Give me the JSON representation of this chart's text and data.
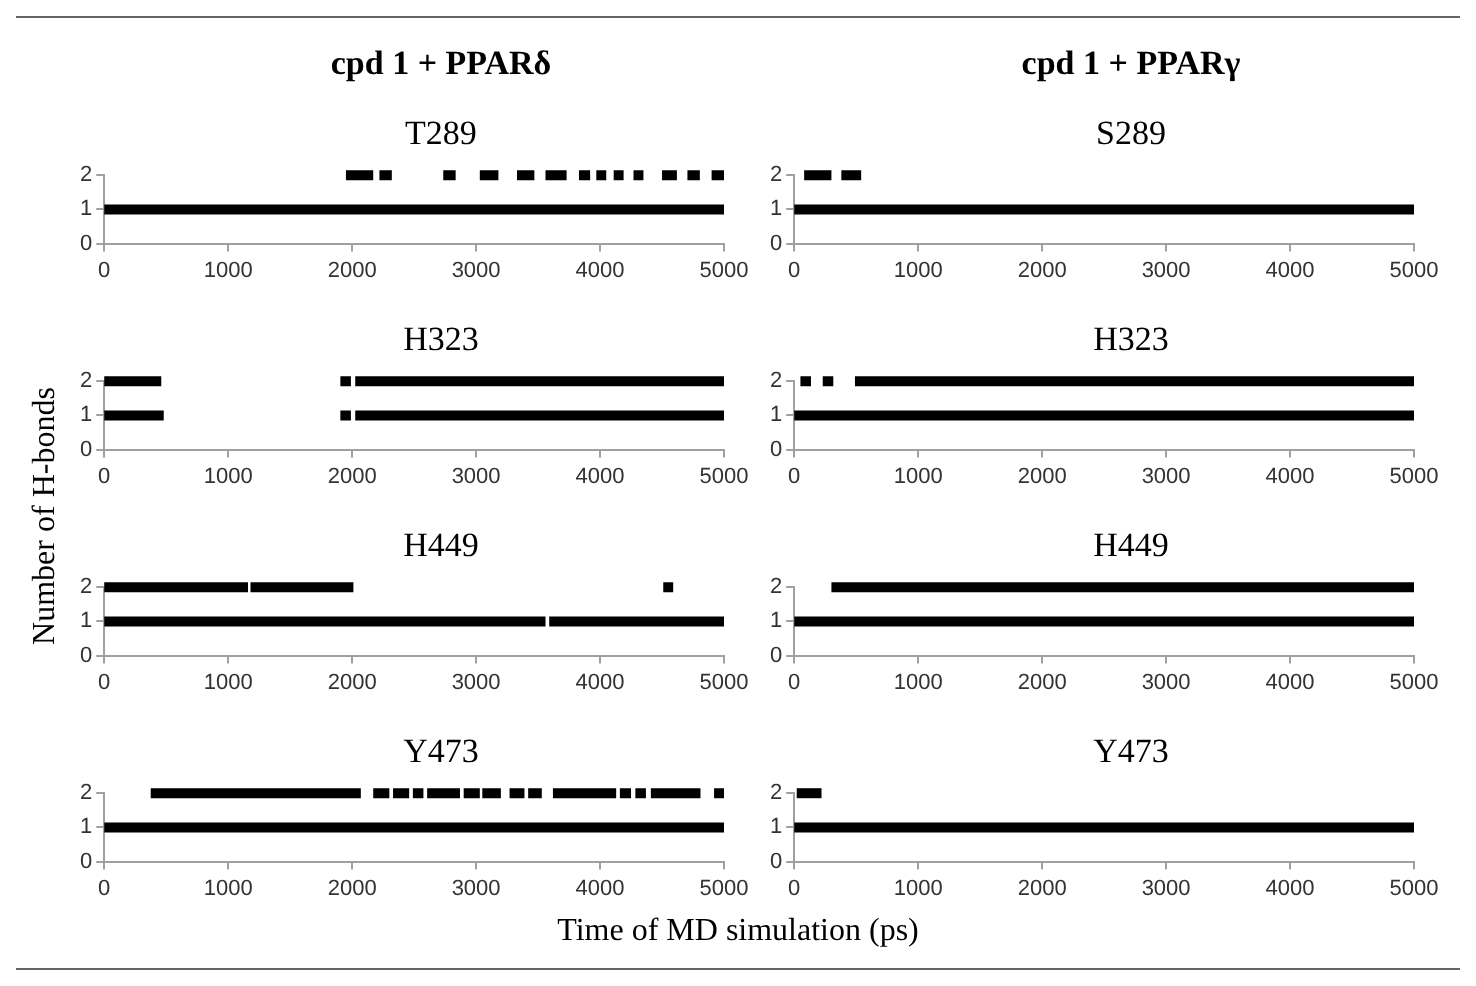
{
  "chart_data": [
    {
      "type": "line",
      "title": "cpd 1 + PPARδ",
      "subtitle": "T289",
      "ylabel": "Number of H-bonds",
      "xlabel": "Time of MD simulation (ps)",
      "xlim": [
        0,
        5000
      ],
      "xticks": [
        0,
        1000,
        2000,
        3000,
        4000,
        5000
      ],
      "ylim": [
        0,
        2
      ],
      "yticks": [
        0,
        1,
        2
      ],
      "grid": false,
      "legend": false,
      "line_style": "solid",
      "series": [
        {
          "color": "#000000",
          "x": [
            0,
            5000
          ],
          "values": [
            1,
            1
          ]
        },
        {
          "color": "#000000",
          "x": [
            1950,
            2170,
            2195,
            2220,
            2320,
            2525,
            2735,
            2835,
            2930,
            3030,
            3180,
            3255,
            3330,
            3470,
            3515,
            3560,
            3730,
            3780,
            3830,
            3920,
            3945,
            3970,
            4050,
            4080,
            4110,
            4190,
            4230,
            4270,
            4350,
            4425,
            4500,
            4620,
            4660,
            4705,
            4805,
            4850,
            4900,
            5000
          ],
          "values": [
            2,
            2,
            null,
            2,
            2,
            null,
            2,
            2,
            null,
            2,
            2,
            null,
            2,
            2,
            null,
            2,
            2,
            null,
            2,
            2,
            null,
            2,
            2,
            null,
            2,
            2,
            null,
            2,
            2,
            null,
            2,
            2,
            null,
            2,
            2,
            null,
            2,
            2
          ]
        }
      ]
    },
    {
      "type": "line",
      "title": "cpd 1 + PPARγ",
      "subtitle": "S289",
      "xlim": [
        0,
        5000
      ],
      "xticks": [
        0,
        1000,
        2000,
        3000,
        4000,
        5000
      ],
      "ylim": [
        0,
        2
      ],
      "yticks": [
        0,
        1,
        2
      ],
      "grid": false,
      "legend": false,
      "line_style": "solid",
      "series": [
        {
          "color": "#000000",
          "x": [
            0,
            5000
          ],
          "values": [
            1,
            1
          ]
        },
        {
          "color": "#000000",
          "x": [
            80,
            300,
            340,
            380,
            540
          ],
          "values": [
            2,
            2,
            null,
            2,
            2
          ]
        }
      ]
    },
    {
      "type": "line",
      "title": "H323",
      "xlim": [
        0,
        5000
      ],
      "xticks": [
        0,
        1000,
        2000,
        3000,
        4000,
        5000
      ],
      "ylim": [
        0,
        2
      ],
      "yticks": [
        0,
        1,
        2
      ],
      "grid": false,
      "legend": false,
      "line_style": "solid",
      "series": [
        {
          "color": "#000000",
          "x": [
            0,
            480,
            1200,
            1905,
            1990,
            2008,
            2025,
            5000
          ],
          "values": [
            1,
            1,
            null,
            1,
            1,
            null,
            1,
            1
          ]
        },
        {
          "color": "#000000",
          "x": [
            0,
            460,
            1200,
            1905,
            1990,
            2008,
            2025,
            5000
          ],
          "values": [
            2,
            2,
            null,
            2,
            2,
            null,
            2,
            2
          ]
        }
      ]
    },
    {
      "type": "line",
      "title": "H323",
      "xlim": [
        0,
        5000
      ],
      "xticks": [
        0,
        1000,
        2000,
        3000,
        4000,
        5000
      ],
      "ylim": [
        0,
        2
      ],
      "yticks": [
        0,
        1,
        2
      ],
      "grid": false,
      "legend": false,
      "line_style": "solid",
      "series": [
        {
          "color": "#000000",
          "x": [
            0,
            5000
          ],
          "values": [
            1,
            1
          ]
        },
        {
          "color": "#000000",
          "x": [
            50,
            135,
            180,
            230,
            315,
            400,
            490,
            5000
          ],
          "values": [
            2,
            2,
            null,
            2,
            2,
            null,
            2,
            2
          ]
        }
      ]
    },
    {
      "type": "line",
      "title": "H449",
      "xlim": [
        0,
        5000
      ],
      "xticks": [
        0,
        1000,
        2000,
        3000,
        4000,
        5000
      ],
      "ylim": [
        0,
        2
      ],
      "yticks": [
        0,
        1,
        2
      ],
      "grid": false,
      "legend": false,
      "line_style": "solid",
      "series": [
        {
          "color": "#000000",
          "x": [
            0,
            3560,
            3575,
            3590,
            5000
          ],
          "values": [
            1,
            1,
            null,
            1,
            1
          ]
        },
        {
          "color": "#000000",
          "x": [
            0,
            1160,
            1170,
            1180,
            2010,
            3000,
            4510,
            4590
          ],
          "values": [
            2,
            2,
            null,
            2,
            2,
            null,
            2,
            2
          ]
        }
      ]
    },
    {
      "type": "line",
      "title": "H449",
      "xlim": [
        0,
        5000
      ],
      "xticks": [
        0,
        1000,
        2000,
        3000,
        4000,
        5000
      ],
      "ylim": [
        0,
        2
      ],
      "yticks": [
        0,
        1,
        2
      ],
      "grid": false,
      "legend": false,
      "line_style": "solid",
      "series": [
        {
          "color": "#000000",
          "x": [
            0,
            5000
          ],
          "values": [
            1,
            1
          ]
        },
        {
          "color": "#000000",
          "x": [
            300,
            5000
          ],
          "values": [
            2,
            2
          ]
        }
      ]
    },
    {
      "type": "line",
      "title": "Y473",
      "xlim": [
        0,
        5000
      ],
      "xticks": [
        0,
        1000,
        2000,
        3000,
        4000,
        5000
      ],
      "ylim": [
        0,
        2
      ],
      "yticks": [
        0,
        1,
        2
      ],
      "grid": false,
      "legend": false,
      "line_style": "solid",
      "series": [
        {
          "color": "#000000",
          "x": [
            0,
            5000
          ],
          "values": [
            1,
            1
          ]
        },
        {
          "color": "#000000",
          "x": [
            375,
            2070,
            2120,
            2170,
            2300,
            2315,
            2330,
            2460,
            2475,
            2490,
            2575,
            2590,
            2605,
            2870,
            2885,
            2900,
            3030,
            3040,
            3050,
            3200,
            3235,
            3270,
            3390,
            3405,
            3420,
            3530,
            3575,
            3620,
            4130,
            4145,
            4160,
            4250,
            4268,
            4285,
            4370,
            4390,
            4410,
            4810,
            4865,
            4920,
            5000
          ],
          "values": [
            2,
            2,
            null,
            2,
            2,
            null,
            2,
            2,
            null,
            2,
            2,
            null,
            2,
            2,
            null,
            2,
            2,
            null,
            2,
            2,
            null,
            2,
            2,
            null,
            2,
            2,
            null,
            2,
            2,
            null,
            2,
            2,
            null,
            2,
            2,
            null,
            2,
            2,
            null,
            2,
            2
          ]
        }
      ]
    },
    {
      "type": "line",
      "title": "Y473",
      "xlim": [
        0,
        5000
      ],
      "xticks": [
        0,
        1000,
        2000,
        3000,
        4000,
        5000
      ],
      "ylim": [
        0,
        2
      ],
      "yticks": [
        0,
        1,
        2
      ],
      "grid": false,
      "legend": false,
      "line_style": "solid",
      "series": [
        {
          "color": "#000000",
          "x": [
            0,
            5000
          ],
          "values": [
            1,
            1
          ]
        },
        {
          "color": "#000000",
          "x": [
            20,
            220
          ],
          "values": [
            2,
            2
          ]
        }
      ]
    }
  ]
}
